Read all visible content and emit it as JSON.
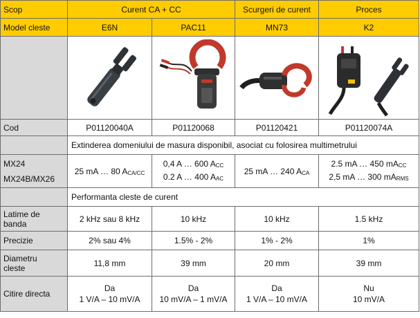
{
  "header": {
    "scope_label": "Scop",
    "scope_groups": [
      "Curent CA + CC",
      "Scurgeri de curent",
      "Proces"
    ]
  },
  "model_row": {
    "label": "Model cleste",
    "models": [
      "E6N",
      "PAC11",
      "MN73",
      "K2"
    ]
  },
  "images": [
    "e6n-clamp-image",
    "pac11-clamp-image",
    "mn73-clamp-image",
    "k2-clamp-image"
  ],
  "code_row": {
    "label": "Cod",
    "values": [
      "P01120040A",
      "P01120068",
      "P01120421",
      "P01120074A"
    ]
  },
  "section_range": "Extinderea domeniului de masura disponibil, asociat cu folosirea multimetrului",
  "range_rows": {
    "label_1": "MX24",
    "label_2": "MX24B/MX26",
    "e6n": {
      "text": "25 mA … 80 A",
      "sub": "CA/CC"
    },
    "pac11_line1": {
      "text": "0,4 A … 600 A",
      "sub": "CC"
    },
    "pac11_line2": {
      "text": "0.2 A … 400 A",
      "sub": "AC"
    },
    "mn73": {
      "text": "25 mA … 240 A",
      "sub": "CA"
    },
    "k2_line1": {
      "text": "2.5 mA … 450 mA",
      "sub": "CC"
    },
    "k2_line2": {
      "text": "2,5 mA … 300 mA",
      "sub": "RMS"
    }
  },
  "section_perf": "Performanta cleste de curent",
  "bandwidth": {
    "label_1": "Latime de",
    "label_2": "banda",
    "values": [
      "2 kHz sau 8 kHz",
      "10 kHz",
      "10 kHz",
      "1.5 kHz"
    ]
  },
  "precision": {
    "label": "Precizie",
    "values": [
      "2% sau 4%",
      "1.5% - 2%",
      "1% - 2%",
      "1%"
    ]
  },
  "diameter": {
    "label_1": "Diametru",
    "label_2": "cleste",
    "values": [
      "11,8 mm",
      "39 mm",
      "20 mm",
      "39 mm"
    ]
  },
  "direct_read": {
    "label": "Citire directa",
    "line1": [
      "Da",
      "Da",
      "Da",
      "Nu"
    ],
    "line2": [
      "1 V/A – 10 mV/A",
      "10 mV/A – 1 mV/A",
      "1 V/A – 10 mV/A",
      "10 mV/A"
    ]
  },
  "colors": {
    "header_yellow": "#ffcc00",
    "label_gray": "#d9d9d9",
    "clamp_red": "#c0392b"
  }
}
